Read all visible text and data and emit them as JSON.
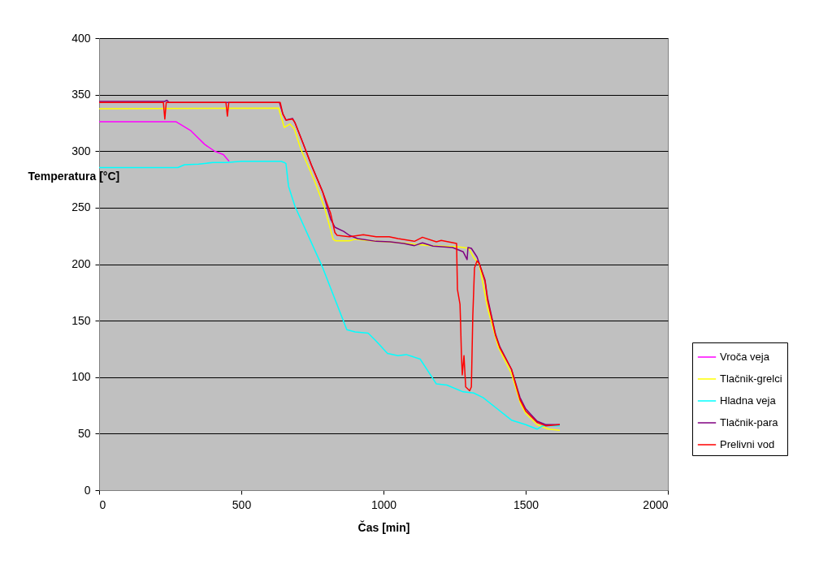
{
  "chart_data": {
    "type": "line",
    "xlabel": "Čas [min]",
    "ylabel": "Temperatura [°C]",
    "xlim": [
      0,
      2000
    ],
    "xticks": [
      0,
      500,
      1000,
      1500,
      2000
    ],
    "ylim": [
      0,
      400
    ],
    "yticks": [
      0,
      50,
      100,
      150,
      200,
      250,
      300,
      350,
      400
    ],
    "grid": "y",
    "legend": "right",
    "marker": "none",
    "line_style": "solid",
    "series": [
      {
        "name": "Vroča veja",
        "color": "#ff00ff",
        "x": [
          0,
          271,
          277,
          323,
          371,
          406,
          437,
          457
        ],
        "values": [
          326,
          326,
          325,
          318,
          306,
          300,
          297,
          291
        ]
      },
      {
        "name": "Tlačnik-grelci",
        "color": "#ffff00",
        "x": [
          0,
          631,
          643,
          651,
          671,
          686,
          709,
          757,
          794,
          823,
          831,
          880,
          900,
          957,
          1050,
          1166,
          1260,
          1300,
          1317,
          1337,
          1366,
          1403,
          1450,
          1480,
          1500,
          1540,
          1580,
          1620
        ],
        "values": [
          337.5,
          338,
          328,
          321,
          324,
          320,
          302,
          274,
          249,
          222,
          220.7,
          220.7,
          222,
          220.7,
          219,
          216.4,
          215.4,
          214,
          206,
          200,
          161,
          127,
          103,
          78,
          68,
          58,
          54,
          53
        ]
      },
      {
        "name": "Hladna veja",
        "color": "#00ffff",
        "x": [
          0,
          277,
          300,
          350,
          400,
          450,
          500,
          560,
          640,
          651,
          657,
          666,
          689,
          786,
          871,
          900,
          946,
          974,
          1014,
          1051,
          1080,
          1129,
          1186,
          1223,
          1280,
          1317,
          1350,
          1400,
          1450,
          1500,
          1540,
          1560,
          1620
        ],
        "values": [
          285.5,
          285.5,
          288,
          288.5,
          290,
          290,
          291,
          291,
          291,
          290,
          289,
          269,
          251,
          197,
          142,
          140,
          139,
          132,
          121,
          119,
          120,
          116,
          94,
          93,
          87,
          86,
          82,
          72,
          62,
          58,
          54,
          57,
          57
        ]
      },
      {
        "name": "Tlačnik-para",
        "color": "#800080",
        "x": [
          0,
          230,
          238,
          246,
          634,
          646,
          657,
          680,
          689,
          717,
          746,
          786,
          814,
          829,
          860,
          880,
          909,
          974,
          1023,
          1071,
          1109,
          1137,
          1174,
          1243,
          1280,
          1294,
          1297,
          1309,
          1329,
          1357,
          1366,
          1394,
          1409,
          1450,
          1480,
          1500,
          1540,
          1570,
          1620
        ],
        "values": [
          344,
          344,
          345,
          343,
          343,
          333,
          327.5,
          329,
          325,
          307,
          288,
          264,
          240,
          232.7,
          229,
          225.5,
          222.6,
          220.2,
          219.7,
          218.3,
          216.4,
          218.8,
          216,
          214.7,
          211,
          204,
          214.7,
          214,
          206.3,
          186,
          170,
          138,
          127,
          107,
          82,
          72,
          61,
          58,
          58
        ]
      },
      {
        "name": "Prelivni vod",
        "color": "#ff0000",
        "x": [
          0,
          226,
          231,
          236,
          446,
          451,
          456,
          637,
          646,
          657,
          680,
          689,
          717,
          746,
          786,
          814,
          829,
          837,
          880,
          929,
          974,
          1020,
          1051,
          1109,
          1137,
          1186,
          1203,
          1257,
          1260,
          1269,
          1271,
          1274,
          1277,
          1283,
          1289,
          1303,
          1309,
          1314,
          1320,
          1329,
          1337,
          1357,
          1366,
          1394,
          1409,
          1450,
          1480,
          1500,
          1540,
          1570,
          1620
        ],
        "values": [
          343,
          343,
          328.4,
          343,
          343,
          331,
          343,
          343,
          333,
          327.5,
          328.4,
          325,
          307,
          288,
          264,
          245,
          228,
          225.5,
          224.3,
          226,
          224.3,
          224.3,
          222.6,
          220.2,
          223.8,
          219.7,
          221,
          218.3,
          177.6,
          164.5,
          148.9,
          120,
          102,
          119,
          91.4,
          88,
          91.4,
          153.7,
          196.8,
          202.8,
          200.4,
          184.8,
          168,
          137,
          126,
          107,
          80,
          70,
          60,
          57,
          58
        ]
      }
    ]
  }
}
